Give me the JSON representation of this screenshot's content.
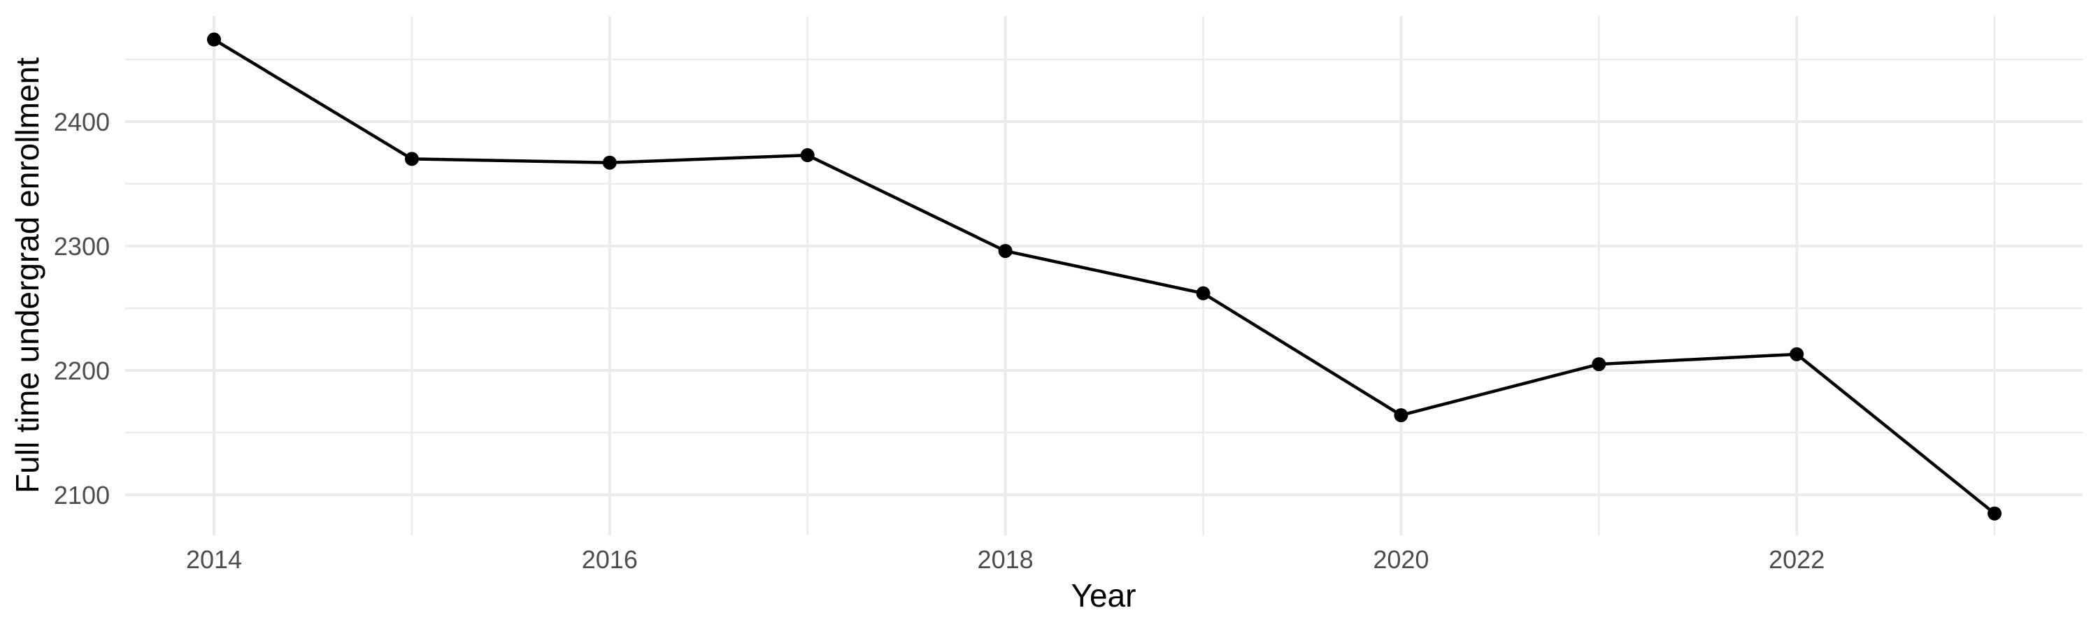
{
  "figure": {
    "background_color": "#FFFFFF",
    "grid_color": "#EBEBEB",
    "line_color": "#000000",
    "point_color": "#000000",
    "tick_label_color": "#4D4D4D",
    "axis_title_color": "#000000"
  },
  "chart_data": {
    "type": "line",
    "title": "",
    "xlabel": "Year",
    "ylabel": "Full time undergrad enrollment",
    "x": [
      2014,
      2015,
      2016,
      2017,
      2018,
      2019,
      2020,
      2021,
      2022,
      2023
    ],
    "values": [
      2466,
      2370,
      2367,
      2373,
      2296,
      2262,
      2164,
      2205,
      2213,
      2085
    ],
    "series_name": "Full time undergrad enrollment",
    "x_ticks": [
      2014,
      2016,
      2018,
      2020,
      2022
    ],
    "x_tick_labels": [
      "2014",
      "2016",
      "2018",
      "2020",
      "2022"
    ],
    "x_minor_gridlines": [
      2015,
      2017,
      2019,
      2021,
      2023
    ],
    "y_ticks": [
      2100,
      2200,
      2300,
      2400
    ],
    "y_tick_labels": [
      "2100",
      "2200",
      "2300",
      "2400"
    ],
    "y_minor_gridlines": [
      2150,
      2250,
      2350,
      2450
    ],
    "xlim": [
      2013.55,
      2023.45
    ],
    "ylim": [
      2067,
      2485
    ],
    "grid": true,
    "legend": false,
    "marker": "circle"
  }
}
